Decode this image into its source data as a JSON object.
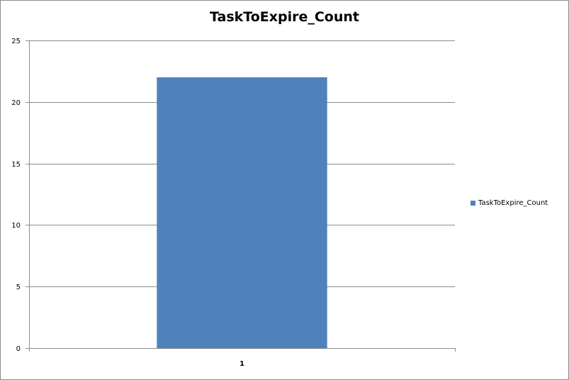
{
  "chart_data": {
    "type": "bar",
    "title": "TaskToExpire_Count",
    "categories": [
      "1"
    ],
    "series": [
      {
        "name": "TaskToExpire_Count",
        "values": [
          22
        ],
        "color": "#4f81bd"
      }
    ],
    "xlabel": "",
    "ylabel": "",
    "ylim": [
      0,
      25
    ],
    "yticks": [
      "0",
      "5",
      "10",
      "15",
      "20",
      "25"
    ],
    "grid": true,
    "legend": "right"
  }
}
